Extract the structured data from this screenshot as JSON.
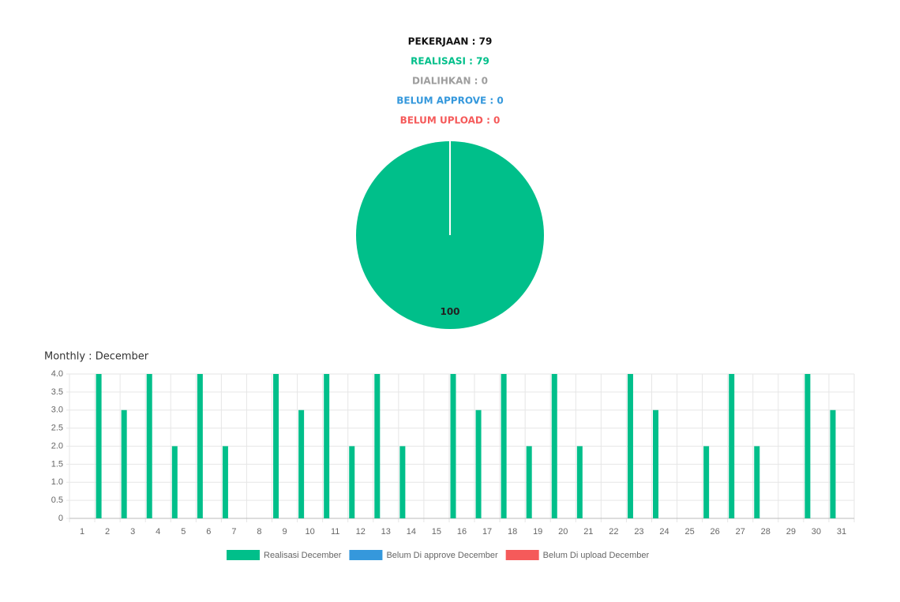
{
  "summary": [
    {
      "text": "PEKERJAAN : 79",
      "color": "#111111"
    },
    {
      "text": "REALISASI : 79",
      "color": "#00bf8a"
    },
    {
      "text": "DIALIHKAN : 0",
      "color": "#9e9e9e"
    },
    {
      "text": "BELUM APPROVE : 0",
      "color": "#3598dc"
    },
    {
      "text": "BELUM UPLOAD : 0",
      "color": "#f55a5a"
    }
  ],
  "chart_data": [
    {
      "type": "pie",
      "values": [
        100
      ],
      "colors": [
        "#00bf8a"
      ]
    },
    {
      "type": "bar",
      "title": "Monthly : December",
      "categories": [
        "1",
        "2",
        "3",
        "4",
        "5",
        "6",
        "7",
        "8",
        "9",
        "10",
        "11",
        "12",
        "13",
        "14",
        "15",
        "16",
        "17",
        "18",
        "19",
        "20",
        "21",
        "22",
        "23",
        "24",
        "25",
        "26",
        "27",
        "28",
        "29",
        "30",
        "31"
      ],
      "series": [
        {
          "name": "Realisasi December",
          "color": "#00bf8a",
          "values": [
            0,
            4,
            3,
            4,
            2,
            4,
            2,
            0,
            4,
            3,
            4,
            2,
            4,
            2,
            0,
            4,
            3,
            4,
            2,
            4,
            2,
            0,
            4,
            3,
            0,
            2,
            4,
            2,
            0,
            4,
            3
          ]
        },
        {
          "name": "Belum Di approve December",
          "color": "#3598dc",
          "values": [
            0,
            0,
            0,
            0,
            0,
            0,
            0,
            0,
            0,
            0,
            0,
            0,
            0,
            0,
            0,
            0,
            0,
            0,
            0,
            0,
            0,
            0,
            0,
            0,
            0,
            0,
            0,
            0,
            0,
            0,
            0
          ]
        },
        {
          "name": "Belum Di upload December",
          "color": "#f55a5a",
          "values": [
            0,
            0,
            0,
            0,
            0,
            0,
            0,
            0,
            0,
            0,
            0,
            0,
            0,
            0,
            0,
            0,
            0,
            0,
            0,
            0,
            0,
            0,
            0,
            0,
            0,
            0,
            0,
            0,
            0,
            0,
            0
          ]
        }
      ],
      "ylim": [
        0,
        4
      ],
      "yticks": [
        0,
        0.5,
        {
          "value": 1,
          "label": "1.0"
        },
        1.5,
        {
          "value": 2,
          "label": "2.0"
        },
        2.5,
        {
          "value": 3,
          "label": "3.0"
        },
        3.5,
        {
          "value": 4,
          "label": "4.0"
        }
      ],
      "grid": true,
      "legend": "bottom"
    }
  ]
}
